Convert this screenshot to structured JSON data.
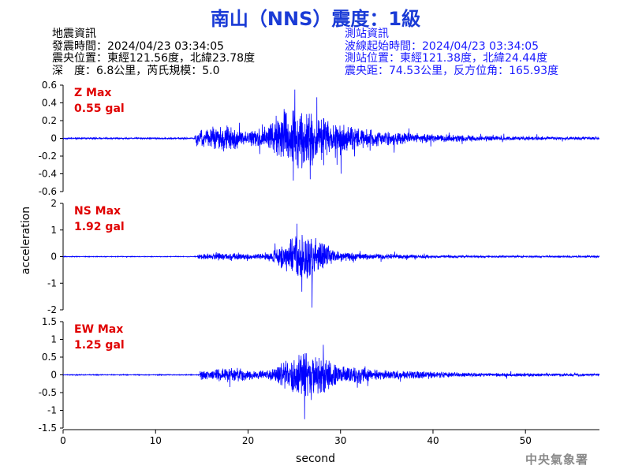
{
  "title": "南山（NNS）震度：1級",
  "earthquake_info": {
    "heading": "地震資訊",
    "origin_time": "發震時間：2024/04/23 03:34:05",
    "epicenter": "震央位置：東經121.56度，北緯23.78度",
    "depth_magnitude": "深　度：6.8公里，芮氏規模：5.0"
  },
  "station_info": {
    "heading": "測站資訊",
    "wave_start": "波線起始時間：2024/04/23 03:34:05",
    "location": "測站位置：東經121.38度，北緯24.44度",
    "distance": "震央距：74.53公里，反方位角：165.93度"
  },
  "watermark": "中央氣象署",
  "chart_data": {
    "type": "line",
    "xlabel": "second",
    "ylabel": "acceleration",
    "xlim": [
      0,
      58
    ],
    "x_ticks": [
      0,
      10,
      20,
      30,
      40,
      50
    ],
    "line_color": "#0000ff",
    "panels": [
      {
        "component": "Z",
        "max_label": "Z Max",
        "max_value_label": "0.55 gal",
        "ylim": [
          -0.6,
          0.6
        ],
        "y_ticks": [
          -0.6,
          -0.4,
          -0.2,
          0,
          0.2,
          0.4,
          0.6
        ],
        "y_tick_labels": [
          "-0.6",
          "-0.4",
          "-0.2",
          "0",
          "0.2",
          "0.4",
          "0.6"
        ],
        "max": 0.55,
        "envelope": {
          "p_onset": 14.2,
          "peak_time": 26.2,
          "pre_noise": 0.012,
          "p_level": 0.22,
          "peak_level": 0.5,
          "decay": 7.0,
          "tail_noise": 0.02
        }
      },
      {
        "component": "NS",
        "max_label": "NS Max",
        "max_value_label": "1.92 gal",
        "ylim": [
          -2,
          2
        ],
        "y_ticks": [
          -2,
          -1,
          0,
          1,
          2
        ],
        "y_tick_labels": [
          "-2",
          "-1",
          "0",
          "1",
          "2"
        ],
        "max": 1.92,
        "envelope": {
          "p_onset": 14.5,
          "peak_time": 26.5,
          "pre_noise": 0.025,
          "p_level": 0.3,
          "peak_level": 1.6,
          "decay": 5.5,
          "tail_noise": 0.06
        }
      },
      {
        "component": "EW",
        "max_label": "EW Max",
        "max_value_label": "1.25 gal",
        "ylim": [
          -1.5,
          1.5
        ],
        "y_ticks": [
          -1.5,
          -1,
          -0.5,
          0,
          0.5,
          1,
          1.5
        ],
        "y_tick_labels": [
          "-1.5",
          "-1",
          "-0.5",
          "0",
          "0.5",
          "1",
          "1.5"
        ],
        "max": 1.25,
        "envelope": {
          "p_onset": 14.8,
          "peak_time": 27.0,
          "pre_noise": 0.02,
          "p_level": 0.35,
          "peak_level": 1.05,
          "decay": 7.5,
          "tail_noise": 0.05
        }
      }
    ]
  }
}
